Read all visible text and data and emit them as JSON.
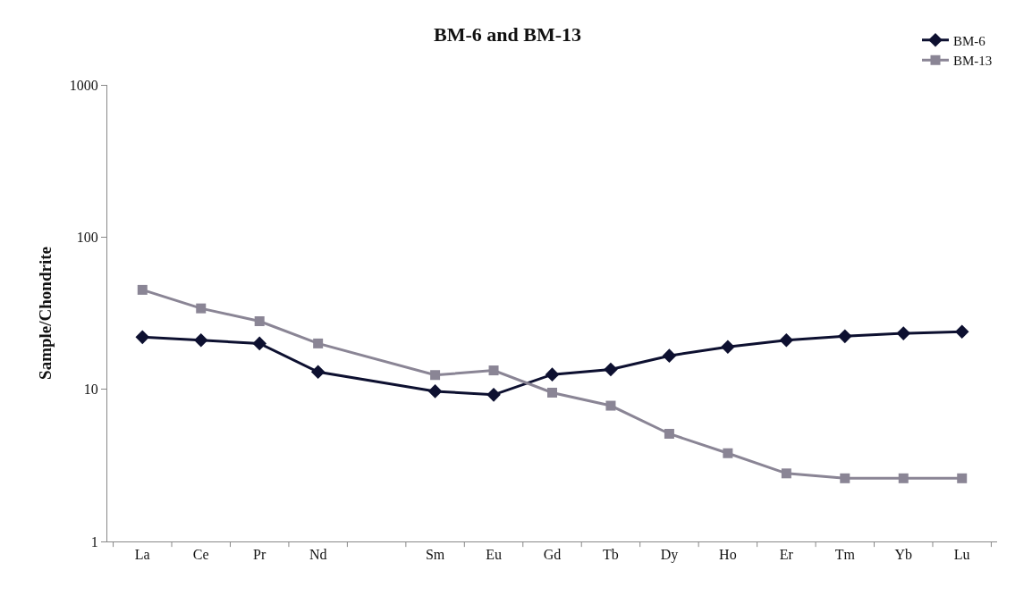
{
  "chart_data": {
    "type": "line",
    "title": "BM-6 and BM-13",
    "ylabel": "Sample/Chondrite",
    "categories": [
      "La",
      "Ce",
      "Pr",
      "Nd",
      null,
      "Sm",
      "Eu",
      "Gd",
      "Tb",
      "Dy",
      "Ho",
      "Er",
      "Tm",
      "Yb",
      "Lu"
    ],
    "series": [
      {
        "name": "BM-6",
        "color": "#0d1030",
        "marker": "diamond",
        "values": [
          22,
          21,
          20,
          13,
          null,
          9.7,
          9.2,
          12.5,
          13.5,
          16.6,
          19,
          21,
          22.3,
          23.3,
          23.9
        ]
      },
      {
        "name": "BM-13",
        "color": "#8a8595",
        "marker": "square",
        "values": [
          45,
          34,
          28,
          20,
          null,
          12.4,
          13.3,
          9.5,
          7.8,
          5.1,
          3.8,
          2.8,
          2.6,
          2.6,
          2.6
        ]
      }
    ],
    "log": "y",
    "ylim": [
      1,
      1000
    ],
    "yticks": [
      1,
      10,
      100,
      1000
    ],
    "legend": "top right"
  }
}
